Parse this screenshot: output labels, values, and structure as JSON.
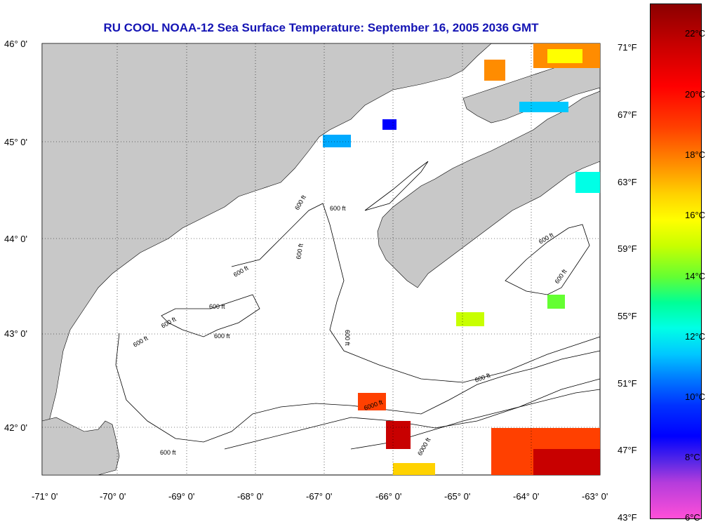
{
  "title": "RU COOL  NOAA-12  Sea Surface Temperature:  September 16, 2005 2036 GMT",
  "latitude_labels": [
    "46° 0'",
    "45° 0'",
    "44° 0'",
    "43° 0'",
    "42° 0'"
  ],
  "longitude_labels": [
    "-71° 0'",
    "-70° 0'",
    "-69° 0'",
    "-68° 0'",
    "-67° 0'",
    "-66° 0'",
    "-65° 0'",
    "-64° 0'",
    "-63° 0'"
  ],
  "colorbar": {
    "fahrenheit_labels": [
      "71°F",
      "67°F",
      "63°F",
      "59°F",
      "55°F",
      "51°F",
      "47°F",
      "43°F"
    ],
    "celsius_labels": [
      "22°C",
      "20°C",
      "18°C",
      "16°C",
      "14°C",
      "12°C",
      "10°C",
      "8°C",
      "6°C"
    ]
  },
  "contour_labels": [
    "600 ft",
    "600 ft",
    "600 ft",
    "600 ft",
    "600 ft",
    "600 ft",
    "600 ft",
    "600 ft",
    "600 ft",
    "600 ft",
    "600 ft",
    "600 ft",
    "600 ft",
    "6000 ft",
    "6000 ft"
  ],
  "colors": {
    "land": "#c8c8c8",
    "title": "#1414b4",
    "ocean": "#ffffff"
  }
}
